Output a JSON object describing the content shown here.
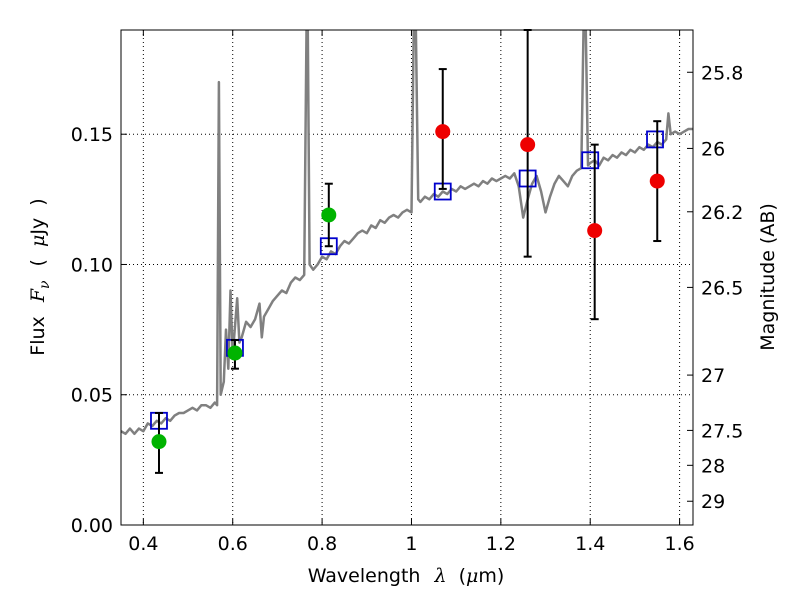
{
  "chart_data": {
    "type": "scatter",
    "title": "",
    "xlabel": "Wavelength",
    "xlabel_symbol": "λ",
    "xlabel_unit_open": "(",
    "xlabel_unit_mu": "μ",
    "xlabel_unit_rest": "m)",
    "ylabel_prefix": "Flux",
    "ylabel_symbol": "F",
    "ylabel_subscript": "ν",
    "ylabel_open": "(",
    "ylabel_mu": "μ",
    "ylabel_unit": "Jy",
    "ylabel_close": ")",
    "y2label": "Magnitude (AB)",
    "xlim": [
      0.35,
      1.63
    ],
    "ylim": [
      0.0,
      0.19
    ],
    "grid": true,
    "x_ticks": [
      0.4,
      0.6,
      0.8,
      1.0,
      1.2,
      1.4,
      1.6
    ],
    "x_tick_labels": [
      "0.4",
      "0.6",
      "0.8",
      "1",
      "1.2",
      "1.4",
      "1.6"
    ],
    "y_ticks": [
      0.0,
      0.05,
      0.1,
      0.15
    ],
    "y_tick_labels": [
      "0.00",
      "0.05",
      "0.10",
      "0.15"
    ],
    "y2_ticks": [
      {
        "label": "25.8",
        "mag": 25.8
      },
      {
        "label": "26",
        "mag": 26.0
      },
      {
        "label": "26.2",
        "mag": 26.2
      },
      {
        "label": "26.5",
        "mag": 26.5
      },
      {
        "label": "27",
        "mag": 27.0
      },
      {
        "label": "27.5",
        "mag": 27.5
      },
      {
        "label": "28",
        "mag": 28.0
      },
      {
        "label": "29",
        "mag": 29.0
      }
    ],
    "colors": {
      "spectrum": "#808080",
      "model_box": "#0000cc",
      "green_point": "#00b300",
      "red_point": "#ee0000",
      "errorbar": "#000000"
    },
    "spectrum": [
      [
        0.35,
        0.036
      ],
      [
        0.36,
        0.035
      ],
      [
        0.37,
        0.037
      ],
      [
        0.38,
        0.035
      ],
      [
        0.39,
        0.037
      ],
      [
        0.4,
        0.036
      ],
      [
        0.41,
        0.039
      ],
      [
        0.42,
        0.038
      ],
      [
        0.43,
        0.04
      ],
      [
        0.44,
        0.039
      ],
      [
        0.45,
        0.041
      ],
      [
        0.46,
        0.04
      ],
      [
        0.47,
        0.042
      ],
      [
        0.48,
        0.043
      ],
      [
        0.49,
        0.043
      ],
      [
        0.5,
        0.044
      ],
      [
        0.51,
        0.045
      ],
      [
        0.52,
        0.044
      ],
      [
        0.53,
        0.046
      ],
      [
        0.54,
        0.046
      ],
      [
        0.55,
        0.045
      ],
      [
        0.56,
        0.047
      ],
      [
        0.565,
        0.046
      ],
      [
        0.569,
        0.17
      ],
      [
        0.573,
        0.05
      ],
      [
        0.58,
        0.055
      ],
      [
        0.585,
        0.075
      ],
      [
        0.59,
        0.06
      ],
      [
        0.595,
        0.09
      ],
      [
        0.6,
        0.065
      ],
      [
        0.61,
        0.087
      ],
      [
        0.615,
        0.07
      ],
      [
        0.62,
        0.072
      ],
      [
        0.63,
        0.078
      ],
      [
        0.64,
        0.076
      ],
      [
        0.65,
        0.079
      ],
      [
        0.66,
        0.085
      ],
      [
        0.665,
        0.072
      ],
      [
        0.67,
        0.08
      ],
      [
        0.68,
        0.083
      ],
      [
        0.69,
        0.086
      ],
      [
        0.7,
        0.088
      ],
      [
        0.71,
        0.09
      ],
      [
        0.72,
        0.089
      ],
      [
        0.73,
        0.093
      ],
      [
        0.74,
        0.095
      ],
      [
        0.75,
        0.094
      ],
      [
        0.76,
        0.096
      ],
      [
        0.765,
        0.19
      ],
      [
        0.768,
        0.19
      ],
      [
        0.772,
        0.1
      ],
      [
        0.78,
        0.098
      ],
      [
        0.79,
        0.1
      ],
      [
        0.8,
        0.103
      ],
      [
        0.81,
        0.102
      ],
      [
        0.82,
        0.105
      ],
      [
        0.83,
        0.104
      ],
      [
        0.84,
        0.107
      ],
      [
        0.85,
        0.109
      ],
      [
        0.86,
        0.108
      ],
      [
        0.87,
        0.11
      ],
      [
        0.88,
        0.112
      ],
      [
        0.89,
        0.113
      ],
      [
        0.9,
        0.112
      ],
      [
        0.91,
        0.115
      ],
      [
        0.92,
        0.114
      ],
      [
        0.93,
        0.117
      ],
      [
        0.94,
        0.116
      ],
      [
        0.95,
        0.118
      ],
      [
        0.96,
        0.119
      ],
      [
        0.97,
        0.118
      ],
      [
        0.98,
        0.12
      ],
      [
        0.99,
        0.121
      ],
      [
        1.0,
        0.12
      ],
      [
        1.005,
        0.19
      ],
      [
        1.01,
        0.19
      ],
      [
        1.015,
        0.125
      ],
      [
        1.02,
        0.124
      ],
      [
        1.03,
        0.126
      ],
      [
        1.04,
        0.125
      ],
      [
        1.05,
        0.127
      ],
      [
        1.06,
        0.126
      ],
      [
        1.07,
        0.128
      ],
      [
        1.08,
        0.127
      ],
      [
        1.09,
        0.129
      ],
      [
        1.1,
        0.128
      ],
      [
        1.11,
        0.13
      ],
      [
        1.12,
        0.129
      ],
      [
        1.13,
        0.13
      ],
      [
        1.14,
        0.131
      ],
      [
        1.15,
        0.13
      ],
      [
        1.16,
        0.132
      ],
      [
        1.17,
        0.131
      ],
      [
        1.18,
        0.133
      ],
      [
        1.19,
        0.132
      ],
      [
        1.2,
        0.133
      ],
      [
        1.21,
        0.134
      ],
      [
        1.22,
        0.133
      ],
      [
        1.23,
        0.135
      ],
      [
        1.24,
        0.13
      ],
      [
        1.25,
        0.118
      ],
      [
        1.26,
        0.125
      ],
      [
        1.27,
        0.131
      ],
      [
        1.28,
        0.134
      ],
      [
        1.29,
        0.128
      ],
      [
        1.3,
        0.12
      ],
      [
        1.31,
        0.126
      ],
      [
        1.32,
        0.131
      ],
      [
        1.33,
        0.134
      ],
      [
        1.34,
        0.132
      ],
      [
        1.35,
        0.13
      ],
      [
        1.36,
        0.134
      ],
      [
        1.37,
        0.136
      ],
      [
        1.38,
        0.137
      ],
      [
        1.385,
        0.19
      ],
      [
        1.39,
        0.19
      ],
      [
        1.395,
        0.138
      ],
      [
        1.4,
        0.139
      ],
      [
        1.41,
        0.14
      ],
      [
        1.42,
        0.138
      ],
      [
        1.43,
        0.141
      ],
      [
        1.44,
        0.14
      ],
      [
        1.45,
        0.142
      ],
      [
        1.46,
        0.141
      ],
      [
        1.47,
        0.143
      ],
      [
        1.48,
        0.142
      ],
      [
        1.49,
        0.144
      ],
      [
        1.5,
        0.143
      ],
      [
        1.51,
        0.145
      ],
      [
        1.52,
        0.144
      ],
      [
        1.53,
        0.146
      ],
      [
        1.54,
        0.145
      ],
      [
        1.55,
        0.147
      ],
      [
        1.56,
        0.146
      ],
      [
        1.57,
        0.148
      ],
      [
        1.575,
        0.158
      ],
      [
        1.58,
        0.15
      ],
      [
        1.59,
        0.151
      ],
      [
        1.6,
        0.15
      ],
      [
        1.61,
        0.151
      ],
      [
        1.62,
        0.152
      ],
      [
        1.63,
        0.152
      ]
    ],
    "series": [
      {
        "kind": "model_box",
        "points": [
          {
            "x": 0.435,
            "y": 0.04
          },
          {
            "x": 0.605,
            "y": 0.068
          },
          {
            "x": 0.815,
            "y": 0.107
          },
          {
            "x": 1.07,
            "y": 0.128
          },
          {
            "x": 1.26,
            "y": 0.133
          },
          {
            "x": 1.4,
            "y": 0.14
          },
          {
            "x": 1.545,
            "y": 0.148
          }
        ]
      },
      {
        "kind": "green_point",
        "points": [
          {
            "x": 0.435,
            "y": 0.032,
            "ylo": 0.02,
            "yhi": 0.043
          },
          {
            "x": 0.605,
            "y": 0.066,
            "ylo": 0.06,
            "yhi": 0.071
          },
          {
            "x": 0.815,
            "y": 0.119,
            "ylo": 0.107,
            "yhi": 0.131
          }
        ]
      },
      {
        "kind": "red_point",
        "points": [
          {
            "x": 1.07,
            "y": 0.151,
            "ylo": 0.129,
            "yhi": 0.175
          },
          {
            "x": 1.26,
            "y": 0.146,
            "ylo": 0.103,
            "yhi": 0.19
          },
          {
            "x": 1.41,
            "y": 0.113,
            "ylo": 0.079,
            "yhi": 0.146
          },
          {
            "x": 1.55,
            "y": 0.132,
            "ylo": 0.109,
            "yhi": 0.155
          }
        ]
      }
    ]
  }
}
